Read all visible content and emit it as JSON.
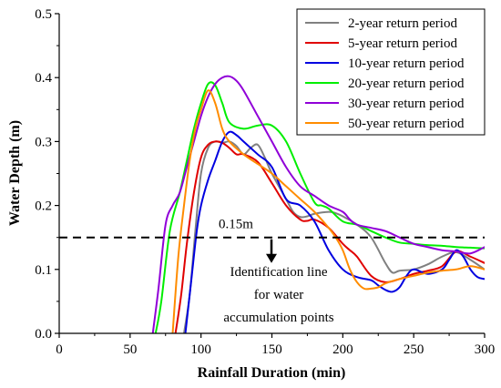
{
  "chart_data": {
    "type": "line",
    "title": "",
    "xlabel": "Rainfall Duration (min)",
    "ylabel": "Water Depth (m)",
    "xlim": [
      0,
      300
    ],
    "ylim": [
      0,
      0.5
    ],
    "xticks": [
      0,
      50,
      100,
      150,
      200,
      250,
      300
    ],
    "yticks": [
      0.0,
      0.1,
      0.2,
      0.3,
      0.4,
      0.5
    ],
    "xtick_labels": [
      "0",
      "50",
      "100",
      "150",
      "200",
      "250",
      "300"
    ],
    "ytick_labels": [
      "0.0",
      "0.1",
      "0.2",
      "0.3",
      "0.4",
      "0.5"
    ],
    "grid": false,
    "legend_position": "top-right",
    "threshold": {
      "value": 0.15,
      "label": "0.15m",
      "annotation": [
        "Identification line",
        "for water",
        "accumulation points"
      ]
    },
    "series": [
      {
        "name": "2-year return period",
        "color": "#808080",
        "x": [
          88,
          92,
          96,
          100,
          105,
          110,
          115,
          120,
          125,
          130,
          135,
          140,
          145,
          150,
          160,
          165,
          170,
          175,
          180,
          190,
          195,
          200,
          210,
          220,
          230,
          235,
          240,
          250,
          260,
          270,
          280,
          290,
          300
        ],
        "y": [
          0,
          0.06,
          0.16,
          0.25,
          0.29,
          0.3,
          0.298,
          0.3,
          0.293,
          0.28,
          0.29,
          0.295,
          0.275,
          0.25,
          0.21,
          0.19,
          0.182,
          0.183,
          0.187,
          0.19,
          0.188,
          0.183,
          0.17,
          0.15,
          0.11,
          0.095,
          0.098,
          0.1,
          0.108,
          0.12,
          0.127,
          0.115,
          0.1
        ]
      },
      {
        "name": "5-year return period",
        "color": "#e00000",
        "x": [
          82,
          86,
          90,
          95,
          100,
          105,
          110,
          115,
          120,
          125,
          130,
          140,
          150,
          160,
          170,
          175,
          180,
          190,
          200,
          205,
          210,
          220,
          230,
          240,
          250,
          260,
          270,
          280,
          290,
          300
        ],
        "y": [
          0,
          0.06,
          0.14,
          0.22,
          0.275,
          0.295,
          0.3,
          0.298,
          0.29,
          0.28,
          0.28,
          0.268,
          0.235,
          0.2,
          0.178,
          0.176,
          0.178,
          0.165,
          0.14,
          0.13,
          0.12,
          0.09,
          0.08,
          0.085,
          0.093,
          0.098,
          0.105,
          0.128,
          0.12,
          0.11
        ]
      },
      {
        "name": "10-year return period",
        "color": "#0000e0",
        "x": [
          89,
          93,
          97,
          100,
          105,
          110,
          115,
          120,
          125,
          130,
          140,
          150,
          160,
          170,
          180,
          190,
          200,
          210,
          220,
          225,
          230,
          235,
          240,
          245,
          250,
          260,
          270,
          275,
          280,
          285,
          290,
          295,
          300
        ],
        "y": [
          0,
          0.08,
          0.16,
          0.2,
          0.24,
          0.27,
          0.3,
          0.315,
          0.31,
          0.3,
          0.28,
          0.26,
          0.21,
          0.2,
          0.175,
          0.13,
          0.1,
          0.088,
          0.083,
          0.075,
          0.068,
          0.065,
          0.072,
          0.09,
          0.1,
          0.093,
          0.1,
          0.115,
          0.13,
          0.12,
          0.1,
          0.088,
          0.085
        ]
      },
      {
        "name": "20-year return period",
        "color": "#00ee00",
        "x": [
          68,
          72,
          78,
          85,
          90,
          95,
          100,
          105,
          110,
          115,
          120,
          130,
          140,
          150,
          160,
          170,
          180,
          185,
          190,
          200,
          210,
          220,
          230,
          240,
          250,
          260,
          270,
          280,
          290,
          300
        ],
        "y": [
          0,
          0.05,
          0.16,
          0.22,
          0.27,
          0.32,
          0.36,
          0.39,
          0.388,
          0.36,
          0.33,
          0.32,
          0.325,
          0.325,
          0.3,
          0.25,
          0.205,
          0.2,
          0.195,
          0.175,
          0.17,
          0.16,
          0.15,
          0.142,
          0.14,
          0.138,
          0.137,
          0.135,
          0.134,
          0.133
        ]
      },
      {
        "name": "30-year return period",
        "color": "#9000d8",
        "x": [
          66,
          70,
          75,
          80,
          85,
          90,
          95,
          100,
          105,
          110,
          115,
          120,
          125,
          130,
          140,
          150,
          160,
          170,
          180,
          190,
          200,
          205,
          210,
          220,
          230,
          240,
          250,
          260,
          270,
          280,
          290,
          300
        ],
        "y": [
          0,
          0.07,
          0.17,
          0.2,
          0.22,
          0.26,
          0.3,
          0.34,
          0.37,
          0.39,
          0.4,
          0.402,
          0.395,
          0.38,
          0.34,
          0.3,
          0.26,
          0.23,
          0.215,
          0.2,
          0.19,
          0.178,
          0.17,
          0.165,
          0.16,
          0.15,
          0.14,
          0.135,
          0.13,
          0.128,
          0.125,
          0.135
        ]
      },
      {
        "name": "50-year return period",
        "color": "#ff8c00",
        "x": [
          80,
          84,
          88,
          92,
          96,
          100,
          105,
          110,
          115,
          120,
          130,
          140,
          150,
          160,
          170,
          180,
          190,
          195,
          200,
          205,
          210,
          215,
          220,
          225,
          230,
          240,
          250,
          260,
          270,
          280,
          290,
          300
        ],
        "y": [
          0,
          0.12,
          0.2,
          0.27,
          0.32,
          0.35,
          0.38,
          0.36,
          0.32,
          0.3,
          0.28,
          0.265,
          0.25,
          0.23,
          0.21,
          0.19,
          0.165,
          0.15,
          0.13,
          0.1,
          0.08,
          0.07,
          0.07,
          0.072,
          0.078,
          0.085,
          0.09,
          0.095,
          0.098,
          0.1,
          0.105,
          0.1
        ]
      }
    ]
  }
}
